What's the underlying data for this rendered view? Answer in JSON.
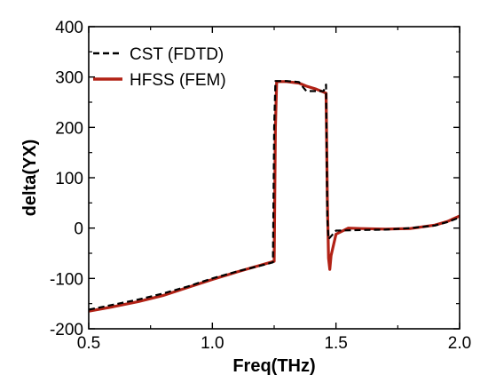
{
  "chart_data": {
    "type": "line",
    "xlabel": "Freq(THz)",
    "ylabel": "delta(YX)",
    "xlim": [
      0.5,
      2.0
    ],
    "ylim": [
      -200,
      400
    ],
    "xticks": [
      "0.5",
      "1.0",
      "1.5",
      "2.0"
    ],
    "yticks": [
      "-200",
      "-100",
      "0",
      "100",
      "200",
      "300",
      "400"
    ],
    "grid": false,
    "legend_position": "top-left",
    "series": [
      {
        "name": "CST (FDTD)",
        "color": "#000000",
        "style": "dashed",
        "x": [
          0.5,
          0.6,
          0.7,
          0.8,
          0.9,
          1.0,
          1.1,
          1.15,
          1.2,
          1.245,
          1.25,
          1.255,
          1.3,
          1.35,
          1.38,
          1.45,
          1.46,
          1.465,
          1.47,
          1.5,
          1.6,
          1.7,
          1.8,
          1.9,
          1.95,
          2.0
        ],
        "y": [
          -162,
          -152,
          -142,
          -130,
          -116,
          -100,
          -86,
          -80,
          -74,
          -68,
          200,
          292,
          292,
          290,
          272,
          272,
          285,
          20,
          -22,
          -5,
          -4,
          -3,
          0,
          5,
          12,
          21
        ]
      },
      {
        "name": "HFSS (FEM)",
        "color": "#b22216",
        "style": "solid",
        "x": [
          0.5,
          0.6,
          0.7,
          0.8,
          0.9,
          1.0,
          1.1,
          1.15,
          1.2,
          1.25,
          1.255,
          1.26,
          1.3,
          1.35,
          1.38,
          1.42,
          1.46,
          1.465,
          1.47,
          1.475,
          1.48,
          1.5,
          1.55,
          1.6,
          1.7,
          1.8,
          1.9,
          1.95,
          2.0
        ],
        "y": [
          -165,
          -156,
          -146,
          -134,
          -118,
          -102,
          -87,
          -80,
          -73,
          -66,
          200,
          291,
          291,
          288,
          282,
          276,
          268,
          60,
          -60,
          -82,
          -55,
          -12,
          0,
          -1,
          -2,
          -1,
          6,
          13,
          24
        ]
      }
    ]
  }
}
